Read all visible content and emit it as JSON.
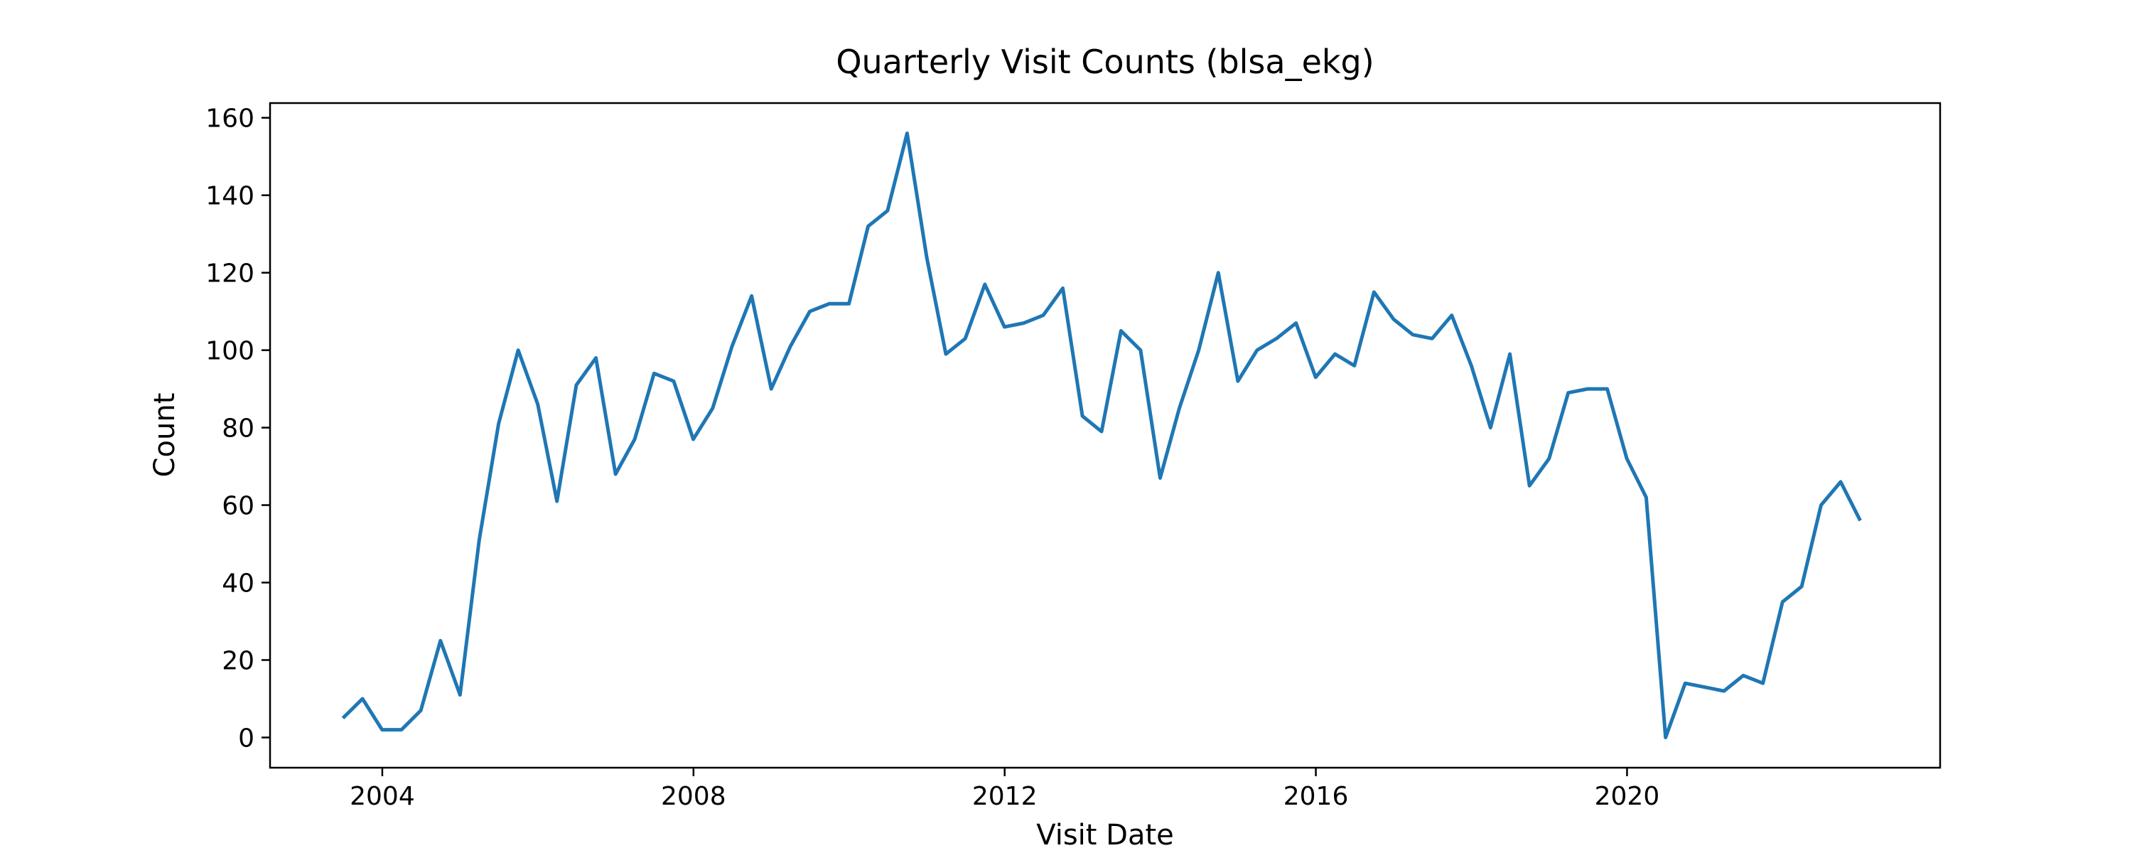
{
  "chart_data": {
    "type": "line",
    "title": "Quarterly Visit Counts (blsa_ekg)",
    "xlabel": "Visit Date",
    "ylabel": "Count",
    "x_ticks": [
      "2004",
      "2008",
      "2012",
      "2016",
      "2020"
    ],
    "y_ticks": [
      "0",
      "20",
      "40",
      "60",
      "80",
      "100",
      "120",
      "140",
      "160"
    ],
    "xlim": [
      "2002-07-23",
      "2024-01-10"
    ],
    "ylim": [
      -7.8,
      163.8
    ],
    "grid": false,
    "legend": "none",
    "series": [
      {
        "color": "#1f77b4",
        "x": [
          "2003-06-30",
          "2003-09-30",
          "2003-12-31",
          "2004-03-31",
          "2004-06-30",
          "2004-09-30",
          "2004-12-31",
          "2005-03-31",
          "2005-06-30",
          "2005-09-30",
          "2005-12-31",
          "2006-03-31",
          "2006-06-30",
          "2006-09-30",
          "2006-12-31",
          "2007-03-31",
          "2007-06-30",
          "2007-09-30",
          "2007-12-31",
          "2008-03-31",
          "2008-06-30",
          "2008-09-30",
          "2008-12-31",
          "2009-03-31",
          "2009-06-30",
          "2009-09-30",
          "2009-12-31",
          "2010-03-31",
          "2010-06-30",
          "2010-09-30",
          "2010-12-31",
          "2011-03-31",
          "2011-06-30",
          "2011-09-30",
          "2011-12-31",
          "2012-03-31",
          "2012-06-30",
          "2012-09-30",
          "2012-12-31",
          "2013-03-31",
          "2013-06-30",
          "2013-09-30",
          "2013-12-31",
          "2014-03-31",
          "2014-06-30",
          "2014-09-30",
          "2014-12-31",
          "2015-03-31",
          "2015-06-30",
          "2015-09-30",
          "2015-12-31",
          "2016-03-31",
          "2016-06-30",
          "2016-09-30",
          "2016-12-31",
          "2017-03-31",
          "2017-06-30",
          "2017-09-30",
          "2017-12-31",
          "2018-03-31",
          "2018-06-30",
          "2018-09-30",
          "2018-12-31",
          "2019-03-31",
          "2019-06-30",
          "2019-09-30",
          "2019-12-31",
          "2020-03-31",
          "2020-06-30",
          "2020-09-30",
          "2020-12-31",
          "2021-03-31",
          "2021-06-30",
          "2021-09-30",
          "2021-12-31",
          "2022-03-31",
          "2022-06-30",
          "2022-09-30",
          "2022-12-31"
        ],
        "y": [
          5,
          10,
          2,
          2,
          7,
          25,
          11,
          51,
          81,
          100,
          86,
          61,
          91,
          98,
          68,
          77,
          94,
          92,
          77,
          85,
          101,
          114,
          90,
          101,
          110,
          112,
          112,
          132,
          136,
          156,
          124,
          99,
          103,
          117,
          106,
          107,
          109,
          116,
          83,
          79,
          105,
          100,
          67,
          85,
          100,
          120,
          92,
          100,
          103,
          107,
          93,
          99,
          96,
          115,
          108,
          104,
          103,
          109,
          96,
          80,
          99,
          65,
          72,
          89,
          90,
          90,
          72,
          62,
          0,
          14,
          13,
          12,
          16,
          14,
          35,
          39,
          60,
          66,
          56
        ]
      }
    ]
  }
}
